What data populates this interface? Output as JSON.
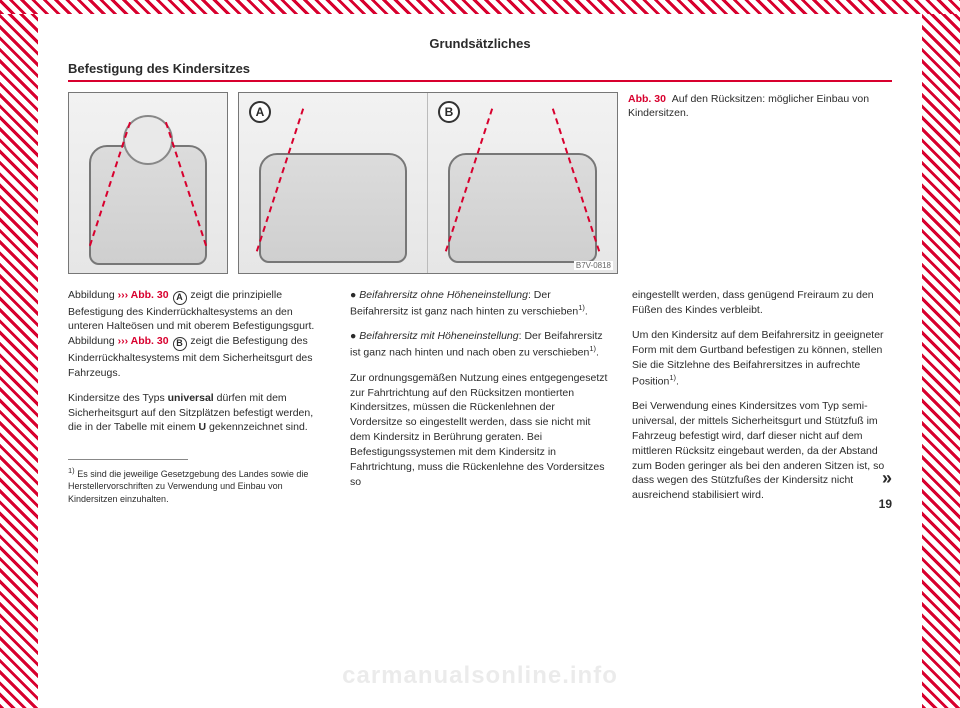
{
  "chapter": {
    "title": "Grundsätzliches"
  },
  "section": {
    "title": "Befestigung des Kindersitzes"
  },
  "figure": {
    "badge_a": "A",
    "badge_b": "B",
    "code": "B7V-0818",
    "caption_label": "Abb. 30",
    "caption_text": "Auf den Rücksitzen: möglicher Einbau von Kindersitzen."
  },
  "body": {
    "col1": {
      "p1_prefix": "Abbildung ",
      "p1_ref": "››› Abb. 30",
      "p1_badgeA": "A",
      "p1_mid": " zeigt die prinzipielle Befestigung des Kinderrückhaltesystems an den unteren Halteösen und mit oberem Befestigungsgurt. Abbildung ",
      "p1_ref2": "››› Abb. 30",
      "p1_badgeB": "B",
      "p1_suffix": " zeigt die Befestigung des Kinderrückhaltesystems mit dem Sicherheitsgurt des Fahrzeugs.",
      "p2_a": "Kindersitze des Typs ",
      "p2_b": "universal",
      "p2_c": " dürfen mit dem Sicherheitsgurt auf den Sitzplätzen befestigt werden, die in der Tabelle mit einem ",
      "p2_d": "U",
      "p2_e": " gekennzeichnet sind."
    },
    "col2": {
      "b1_label": "Beifahrersitz ohne Höheneinstellung",
      "b1_text": ": Der Beifahrersitz ist ganz nach hinten zu verschieben",
      "b2_label": "Beifahrersitz mit Höheneinstellung",
      "b2_text": ": Der Beifahrersitz ist ganz nach hinten und nach oben zu verschieben",
      "p3": "Zur ordnungsgemäßen Nutzung eines entgegengesetzt zur Fahrtrichtung auf den Rücksitzen montierten Kindersitzes, müssen die Rückenlehnen der Vordersitze so eingestellt werden, dass sie nicht mit dem Kindersitz in Berührung geraten. Bei Befestigungssystemen mit dem Kindersitz in Fahrtrichtung, muss die Rückenlehne des Vordersitzes so"
    },
    "col3": {
      "p4": "eingestellt werden, dass genügend Freiraum zu den Füßen des Kindes verbleibt.",
      "p5": "Um den Kindersitz auf dem Beifahrersitz in geeigneter Form mit dem Gurtband befestigen zu können, stellen Sie die Sitzlehne des Beifahrersitzes in aufrechte Position",
      "p6": "Bei Verwendung eines Kindersitzes vom Typ semi-universal, der mittels Sicherheitsgurt und Stützfuß im Fahrzeug befestigt wird, darf dieser nicht auf dem mittleren Rücksitz eingebaut werden, da der Abstand zum Boden geringer als bei den anderen Sitzen ist, so dass wegen des Stützfußes der Kindersitz nicht ausreichend stabilisiert wird."
    }
  },
  "footnote": {
    "marker": "1)",
    "text": "Es sind die jeweilige Gesetzgebung des Landes sowie die Herstellervorschriften zu Verwendung und Einbau von Kindersitzen einzuhalten."
  },
  "page_number": "19",
  "continue_marker": "»",
  "watermark": "carmanualsonline.info",
  "colors": {
    "accent": "#d8002e",
    "text": "#2b2b2b",
    "rule": "#d8002e"
  }
}
